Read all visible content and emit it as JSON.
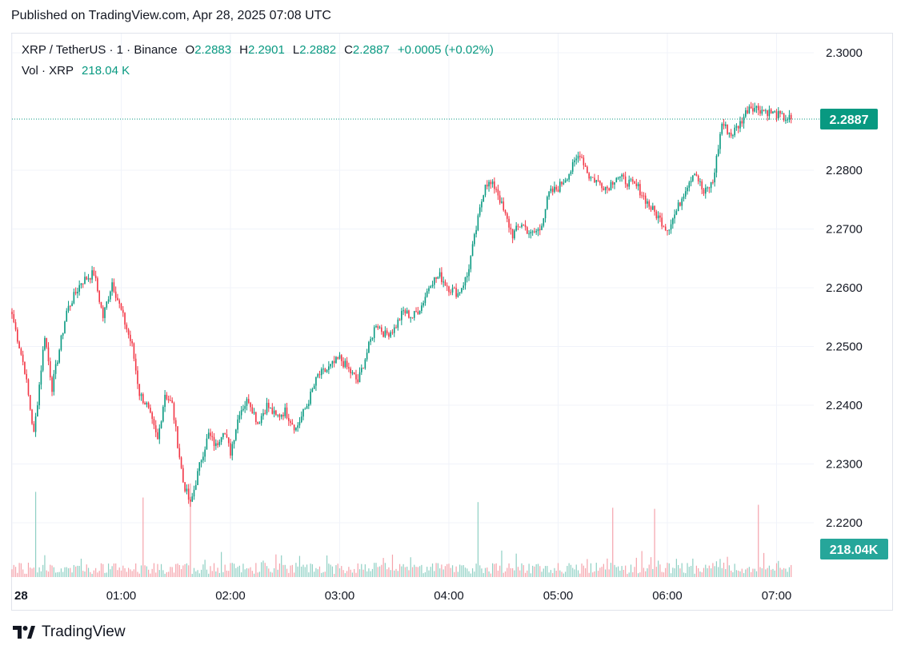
{
  "header": {
    "published": "Published on TradingView.com, Apr 28, 2025 07:08 UTC"
  },
  "legend": {
    "symbol": "XRP / TetherUS · 1 · Binance",
    "o_label": "O",
    "o_value": "2.2883",
    "h_label": "H",
    "h_value": "2.2901",
    "l_label": "L",
    "l_value": "2.2882",
    "c_label": "C",
    "c_value": "2.2887",
    "change": "+0.0005 (+0.02%)",
    "vol_label": "Vol · XRP",
    "vol_value": "218.04 K"
  },
  "price_badge": "2.2887",
  "volume_badge": "218.04K",
  "brand": {
    "name": "TradingView"
  },
  "colors": {
    "up": "#089981",
    "down": "#f23645",
    "up_vol": "#8fd0c4",
    "down_vol": "#f5a3ab",
    "badge": "#089981",
    "vol_badge": "#26a69a"
  },
  "chart_data": {
    "type": "candlestick",
    "interval": "1 minute",
    "yticks": [
      "2.3000",
      "2.2800",
      "2.2700",
      "2.2600",
      "2.2500",
      "2.2400",
      "2.2300",
      "2.2200"
    ],
    "ylim": [
      2.2165,
      2.3075
    ],
    "xticks": [
      "28",
      "01:00",
      "02:00",
      "03:00",
      "04:00",
      "05:00",
      "06:00",
      "07:00"
    ],
    "last_price": 2.2887,
    "close_path": [
      [
        "00:00",
        2.2555
      ],
      [
        "00:07",
        2.246
      ],
      [
        "00:12",
        2.235
      ],
      [
        "00:18",
        2.252
      ],
      [
        "00:22",
        2.243
      ],
      [
        "00:30",
        2.256
      ],
      [
        "00:38",
        2.261
      ],
      [
        "00:45",
        2.2625
      ],
      [
        "00:50",
        2.255
      ],
      [
        "00:55",
        2.261
      ],
      [
        "01:06",
        2.25
      ],
      [
        "01:10",
        2.242
      ],
      [
        "01:14",
        2.24
      ],
      [
        "01:20",
        2.234
      ],
      [
        "01:24",
        2.242
      ],
      [
        "01:28",
        2.24
      ],
      [
        "01:34",
        2.227
      ],
      [
        "01:38",
        2.223
      ],
      [
        "01:44",
        2.231
      ],
      [
        "01:48",
        2.235
      ],
      [
        "01:52",
        2.233
      ],
      [
        "01:56",
        2.236
      ],
      [
        "02:00",
        2.232
      ],
      [
        "02:05",
        2.239
      ],
      [
        "02:10",
        2.241
      ],
      [
        "02:15",
        2.237
      ],
      [
        "02:20",
        2.24
      ],
      [
        "02:25",
        2.238
      ],
      [
        "02:30",
        2.239
      ],
      [
        "02:36",
        2.236
      ],
      [
        "02:42",
        2.24
      ],
      [
        "02:48",
        2.245
      ],
      [
        "02:53",
        2.246
      ],
      [
        "03:00",
        2.248
      ],
      [
        "03:05",
        2.246
      ],
      [
        "03:10",
        2.244
      ],
      [
        "03:15",
        2.249
      ],
      [
        "03:20",
        2.254
      ],
      [
        "03:25",
        2.252
      ],
      [
        "03:30",
        2.253
      ],
      [
        "03:35",
        2.256
      ],
      [
        "03:40",
        2.255
      ],
      [
        "03:45",
        2.257
      ],
      [
        "03:50",
        2.261
      ],
      [
        "03:55",
        2.262
      ],
      [
        "04:00",
        2.26
      ],
      [
        "04:05",
        2.259
      ],
      [
        "04:10",
        2.262
      ],
      [
        "04:15",
        2.27
      ],
      [
        "04:20",
        2.278
      ],
      [
        "04:26",
        2.277
      ],
      [
        "04:30",
        2.273
      ],
      [
        "04:35",
        2.269
      ],
      [
        "04:40",
        2.271
      ],
      [
        "04:45",
        2.269
      ],
      [
        "04:50",
        2.27
      ],
      [
        "04:55",
        2.276
      ],
      [
        "05:00",
        2.277
      ],
      [
        "05:07",
        2.28
      ],
      [
        "05:12",
        2.283
      ],
      [
        "05:17",
        2.279
      ],
      [
        "05:22",
        2.278
      ],
      [
        "05:27",
        2.277
      ],
      [
        "05:32",
        2.279
      ],
      [
        "05:38",
        2.278
      ],
      [
        "05:44",
        2.277
      ],
      [
        "05:50",
        2.274
      ],
      [
        "05:55",
        2.272
      ],
      [
        "06:00",
        2.27
      ],
      [
        "06:05",
        2.273
      ],
      [
        "06:10",
        2.277
      ],
      [
        "06:15",
        2.28
      ],
      [
        "06:20",
        2.276
      ],
      [
        "06:25",
        2.278
      ],
      [
        "06:30",
        2.288
      ],
      [
        "06:35",
        2.286
      ],
      [
        "06:40",
        2.288
      ],
      [
        "06:45",
        2.291
      ],
      [
        "06:50",
        2.2905
      ],
      [
        "06:55",
        2.29
      ],
      [
        "07:00",
        2.2895
      ],
      [
        "07:03",
        2.289
      ],
      [
        "07:08",
        2.2887
      ]
    ],
    "volume_spikes": [
      [
        "00:13",
        "down"
      ],
      [
        "01:12",
        "down"
      ],
      [
        "01:38",
        "down"
      ],
      [
        "04:16",
        "up"
      ],
      [
        "05:30",
        "up"
      ],
      [
        "05:53",
        "down"
      ],
      [
        "06:50",
        "up"
      ]
    ]
  }
}
